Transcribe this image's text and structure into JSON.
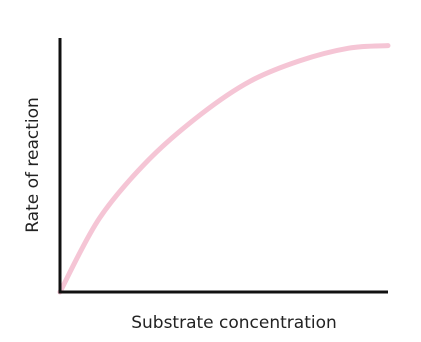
{
  "chart_data": {
    "type": "line",
    "x_label": "Substrate concentration",
    "y_label": "Rate of reaction",
    "x": [
      0,
      12,
      27,
      43,
      58,
      73,
      88,
      100
    ],
    "series": [
      {
        "color": "#f5c5d5",
        "values": [
          0,
          29,
          52,
          70,
          83,
          91,
          96,
          97
        ]
      }
    ],
    "xlim": [
      0,
      100
    ],
    "ylim": [
      0,
      100
    ]
  }
}
